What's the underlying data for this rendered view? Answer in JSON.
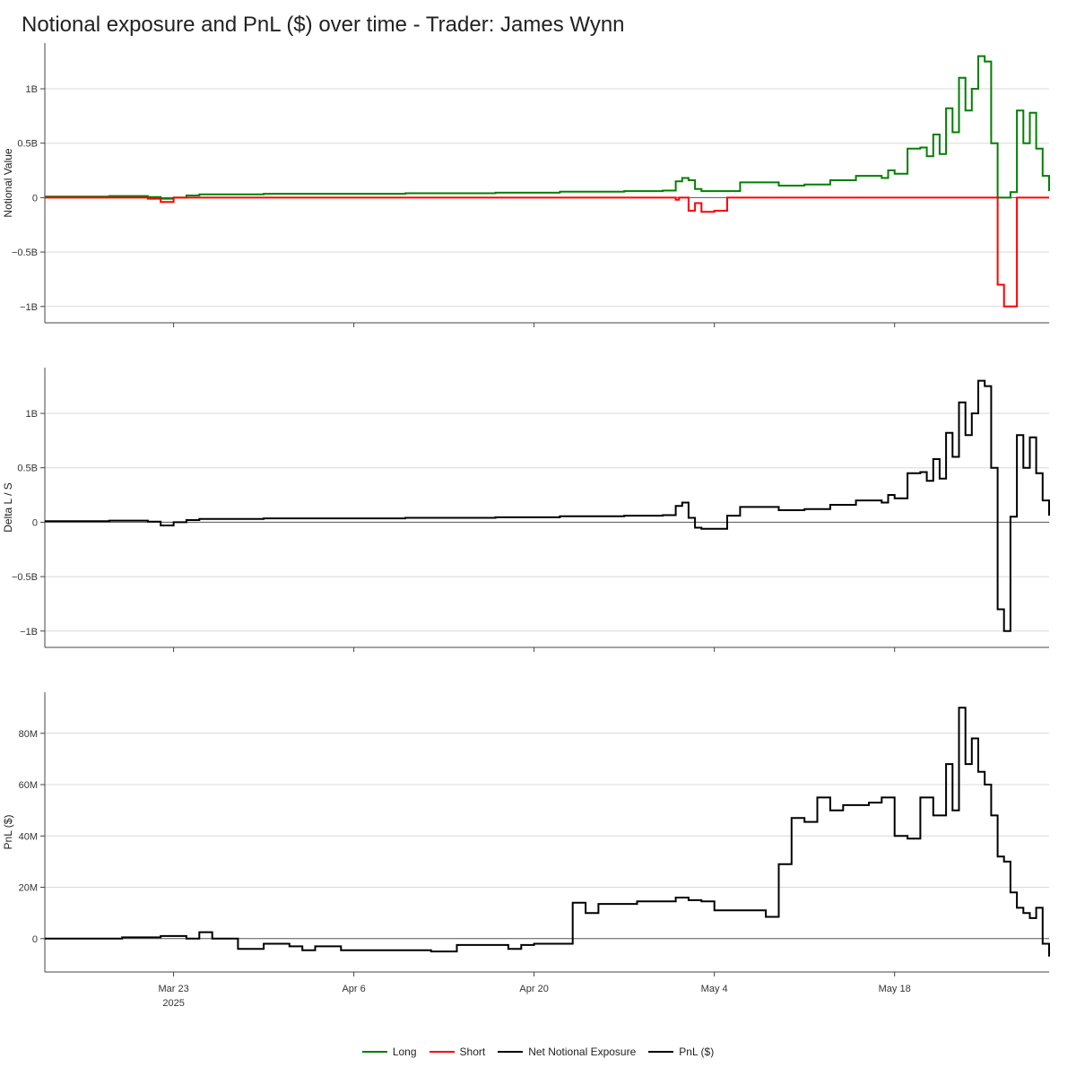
{
  "title": "Notional exposure and PnL ($) over time - Trader: James Wynn",
  "colors": {
    "long": "#008000",
    "short": "#ff0000",
    "net": "#000000",
    "pnl": "#000000"
  },
  "legend": [
    {
      "label": "Long",
      "color": "#008000"
    },
    {
      "label": "Short",
      "color": "#ff0000"
    },
    {
      "label": "Net Notional Exposure",
      "color": "#000000"
    },
    {
      "label": "PnL ($)",
      "color": "#000000"
    }
  ],
  "x_axis": {
    "range": [
      "2025-03-13",
      "2025-05-30"
    ],
    "ticks": [
      {
        "date": "2025-03-23",
        "label": "Mar 23",
        "sublabel": "2025"
      },
      {
        "date": "2025-04-06",
        "label": "Apr 6",
        "sublabel": ""
      },
      {
        "date": "2025-04-20",
        "label": "Apr 20",
        "sublabel": ""
      },
      {
        "date": "2025-05-04",
        "label": "May 4",
        "sublabel": ""
      },
      {
        "date": "2025-05-18",
        "label": "May 18",
        "sublabel": ""
      }
    ]
  },
  "chart_data": [
    {
      "type": "line",
      "ylabel": "Notional Value",
      "ylim": [
        -1150000000.0,
        1420000000.0
      ],
      "yticks": [
        {
          "value": 1000000000.0,
          "label": "1B"
        },
        {
          "value": 500000000.0,
          "label": "0.5B"
        },
        {
          "value": 0,
          "label": "0"
        },
        {
          "value": -500000000.0,
          "label": "−0.5B"
        },
        {
          "value": -1000000000.0,
          "label": "−1B"
        }
      ],
      "series": [
        {
          "name": "Long",
          "color": "#008000",
          "x": [
            "2025-03-13",
            "2025-03-18",
            "2025-03-21",
            "2025-03-22",
            "2025-03-23",
            "2025-03-24",
            "2025-03-25",
            "2025-03-30",
            "2025-04-10",
            "2025-04-17",
            "2025-04-22",
            "2025-04-27",
            "2025-04-30",
            "2025-05-01",
            "2025-05-01T12:00",
            "2025-05-02",
            "2025-05-02T12:00",
            "2025-05-03",
            "2025-05-05",
            "2025-05-06",
            "2025-05-07",
            "2025-05-09",
            "2025-05-11",
            "2025-05-13",
            "2025-05-15",
            "2025-05-17",
            "2025-05-17T12:00",
            "2025-05-18",
            "2025-05-19",
            "2025-05-20",
            "2025-05-20T12:00",
            "2025-05-21",
            "2025-05-21T12:00",
            "2025-05-22",
            "2025-05-22T12:00",
            "2025-05-23",
            "2025-05-23T12:00",
            "2025-05-24",
            "2025-05-24T12:00",
            "2025-05-25",
            "2025-05-25T12:00",
            "2025-05-26",
            "2025-05-26T12:00",
            "2025-05-27",
            "2025-05-27T12:00",
            "2025-05-28",
            "2025-05-28T12:00",
            "2025-05-29",
            "2025-05-29T12:00",
            "2025-05-30"
          ],
          "values": [
            10000000.0,
            15000000.0,
            5000000.0,
            -10000000.0,
            0,
            20000000.0,
            30000000.0,
            35000000.0,
            40000000.0,
            45000000.0,
            55000000.0,
            60000000.0,
            65000000.0,
            150000000.0,
            180000000.0,
            160000000.0,
            80000000.0,
            60000000.0,
            60000000.0,
            140000000.0,
            140000000.0,
            110000000.0,
            120000000.0,
            160000000.0,
            200000000.0,
            180000000.0,
            250000000.0,
            220000000.0,
            450000000.0,
            460000000.0,
            380000000.0,
            580000000.0,
            400000000.0,
            820000000.0,
            600000000.0,
            1100000000.0,
            800000000.0,
            1000000000.0,
            1300000000.0,
            1250000000.0,
            500000000.0,
            0,
            0,
            50000000.0,
            800000000.0,
            500000000.0,
            780000000.0,
            450000000.0,
            200000000.0,
            60000000.0
          ]
        },
        {
          "name": "Short",
          "color": "#ff0000",
          "x": [
            "2025-03-13",
            "2025-03-21",
            "2025-03-22",
            "2025-03-23",
            "2025-04-30",
            "2025-05-01",
            "2025-05-01T06:00",
            "2025-05-01T12:00",
            "2025-05-02",
            "2025-05-02T12:00",
            "2025-05-03",
            "2025-05-04",
            "2025-05-05",
            "2025-05-05T12:00",
            "2025-05-25",
            "2025-05-25T12:00",
            "2025-05-26",
            "2025-05-26T12:00",
            "2025-05-27",
            "2025-05-27T12:00",
            "2025-05-30"
          ],
          "values": [
            0,
            -10000000.0,
            -40000000.0,
            0,
            0,
            -20000000.0,
            0,
            0,
            -120000000.0,
            -50000000.0,
            -130000000.0,
            -120000000.0,
            0,
            0,
            0,
            0,
            -800000000.0,
            -1000000000.0,
            -1000000000.0,
            0,
            0
          ]
        }
      ]
    },
    {
      "type": "line",
      "ylabel": "Delta L / S",
      "ylim": [
        -1150000000.0,
        1420000000.0
      ],
      "yticks": [
        {
          "value": 1000000000.0,
          "label": "1B"
        },
        {
          "value": 500000000.0,
          "label": "0.5B"
        },
        {
          "value": 0,
          "label": "0"
        },
        {
          "value": -500000000.0,
          "label": "−0.5B"
        },
        {
          "value": -1000000000.0,
          "label": "−1B"
        }
      ],
      "series": [
        {
          "name": "Net Notional Exposure",
          "color": "#000000",
          "x": [
            "2025-03-13",
            "2025-03-18",
            "2025-03-21",
            "2025-03-22",
            "2025-03-23",
            "2025-03-24",
            "2025-03-25",
            "2025-03-30",
            "2025-04-10",
            "2025-04-17",
            "2025-04-22",
            "2025-04-27",
            "2025-04-30",
            "2025-05-01",
            "2025-05-01T12:00",
            "2025-05-02",
            "2025-05-02T12:00",
            "2025-05-03",
            "2025-05-05",
            "2025-05-06",
            "2025-05-07",
            "2025-05-09",
            "2025-05-11",
            "2025-05-13",
            "2025-05-15",
            "2025-05-17",
            "2025-05-17T12:00",
            "2025-05-18",
            "2025-05-19",
            "2025-05-20",
            "2025-05-20T12:00",
            "2025-05-21",
            "2025-05-21T12:00",
            "2025-05-22",
            "2025-05-22T12:00",
            "2025-05-23",
            "2025-05-23T12:00",
            "2025-05-24",
            "2025-05-24T12:00",
            "2025-05-25",
            "2025-05-25T12:00",
            "2025-05-26",
            "2025-05-26T12:00",
            "2025-05-27",
            "2025-05-27T12:00",
            "2025-05-28",
            "2025-05-28T12:00",
            "2025-05-29",
            "2025-05-29T12:00",
            "2025-05-30"
          ],
          "values": [
            10000000.0,
            15000000.0,
            5000000.0,
            -30000000.0,
            0,
            20000000.0,
            30000000.0,
            35000000.0,
            40000000.0,
            45000000.0,
            55000000.0,
            60000000.0,
            65000000.0,
            150000000.0,
            180000000.0,
            40000000.0,
            -50000000.0,
            -60000000.0,
            60000000.0,
            140000000.0,
            140000000.0,
            110000000.0,
            120000000.0,
            160000000.0,
            200000000.0,
            180000000.0,
            250000000.0,
            220000000.0,
            450000000.0,
            460000000.0,
            380000000.0,
            580000000.0,
            400000000.0,
            820000000.0,
            600000000.0,
            1100000000.0,
            800000000.0,
            1000000000.0,
            1300000000.0,
            1250000000.0,
            500000000.0,
            -800000000.0,
            -1000000000.0,
            50000000.0,
            800000000.0,
            500000000.0,
            780000000.0,
            450000000.0,
            200000000.0,
            60000000.0
          ]
        }
      ]
    },
    {
      "type": "line",
      "ylabel": "PnL ($)",
      "ylim": [
        -13000000,
        96000000
      ],
      "yticks": [
        {
          "value": 80000000,
          "label": "80M"
        },
        {
          "value": 60000000,
          "label": "60M"
        },
        {
          "value": 40000000,
          "label": "40M"
        },
        {
          "value": 20000000,
          "label": "20M"
        },
        {
          "value": 0,
          "label": "0"
        }
      ],
      "series": [
        {
          "name": "PnL ($)",
          "color": "#000000",
          "x": [
            "2025-03-13",
            "2025-03-16",
            "2025-03-19",
            "2025-03-22",
            "2025-03-24",
            "2025-03-25",
            "2025-03-26",
            "2025-03-28",
            "2025-03-30",
            "2025-03-31",
            "2025-04-01",
            "2025-04-02",
            "2025-04-03",
            "2025-04-05",
            "2025-04-07",
            "2025-04-12",
            "2025-04-14",
            "2025-04-17",
            "2025-04-18",
            "2025-04-19",
            "2025-04-20",
            "2025-04-22",
            "2025-04-23",
            "2025-04-24",
            "2025-04-25",
            "2025-04-28",
            "2025-05-01",
            "2025-05-02",
            "2025-05-03",
            "2025-05-04",
            "2025-05-05",
            "2025-05-07",
            "2025-05-08",
            "2025-05-09",
            "2025-05-10",
            "2025-05-11",
            "2025-05-12",
            "2025-05-13",
            "2025-05-14",
            "2025-05-15",
            "2025-05-16",
            "2025-05-17",
            "2025-05-18",
            "2025-05-19",
            "2025-05-20",
            "2025-05-21",
            "2025-05-22",
            "2025-05-22T12:00",
            "2025-05-23",
            "2025-05-23T12:00",
            "2025-05-24",
            "2025-05-24T12:00",
            "2025-05-25",
            "2025-05-25T12:00",
            "2025-05-26",
            "2025-05-26T12:00",
            "2025-05-27",
            "2025-05-27T12:00",
            "2025-05-28",
            "2025-05-28T12:00",
            "2025-05-29",
            "2025-05-29T12:00",
            "2025-05-30"
          ],
          "values": [
            0,
            0,
            500000,
            1000000,
            0,
            2500000,
            0,
            -4000000,
            -2000000,
            -2000000,
            -3000000,
            -4500000,
            -3000000,
            -4500000,
            -4500000,
            -5000000,
            -2500000,
            -2500000,
            -4000000,
            -2500000,
            -2000000,
            -2000000,
            14000000,
            10000000,
            13500000,
            14500000,
            16000000,
            15000000,
            14500000,
            11000000,
            11000000,
            11000000,
            8500000,
            29000000,
            47000000,
            45500000,
            55000000,
            50000000,
            52000000,
            52000000,
            53000000,
            55000000,
            40000000,
            39000000,
            55000000,
            48000000,
            68000000,
            50000000,
            90000000,
            68000000,
            78000000,
            65000000,
            60000000,
            48000000,
            32000000,
            30000000,
            18000000,
            12000000,
            10000000,
            8000000,
            12000000,
            -2000000,
            -7000000
          ]
        }
      ]
    }
  ]
}
